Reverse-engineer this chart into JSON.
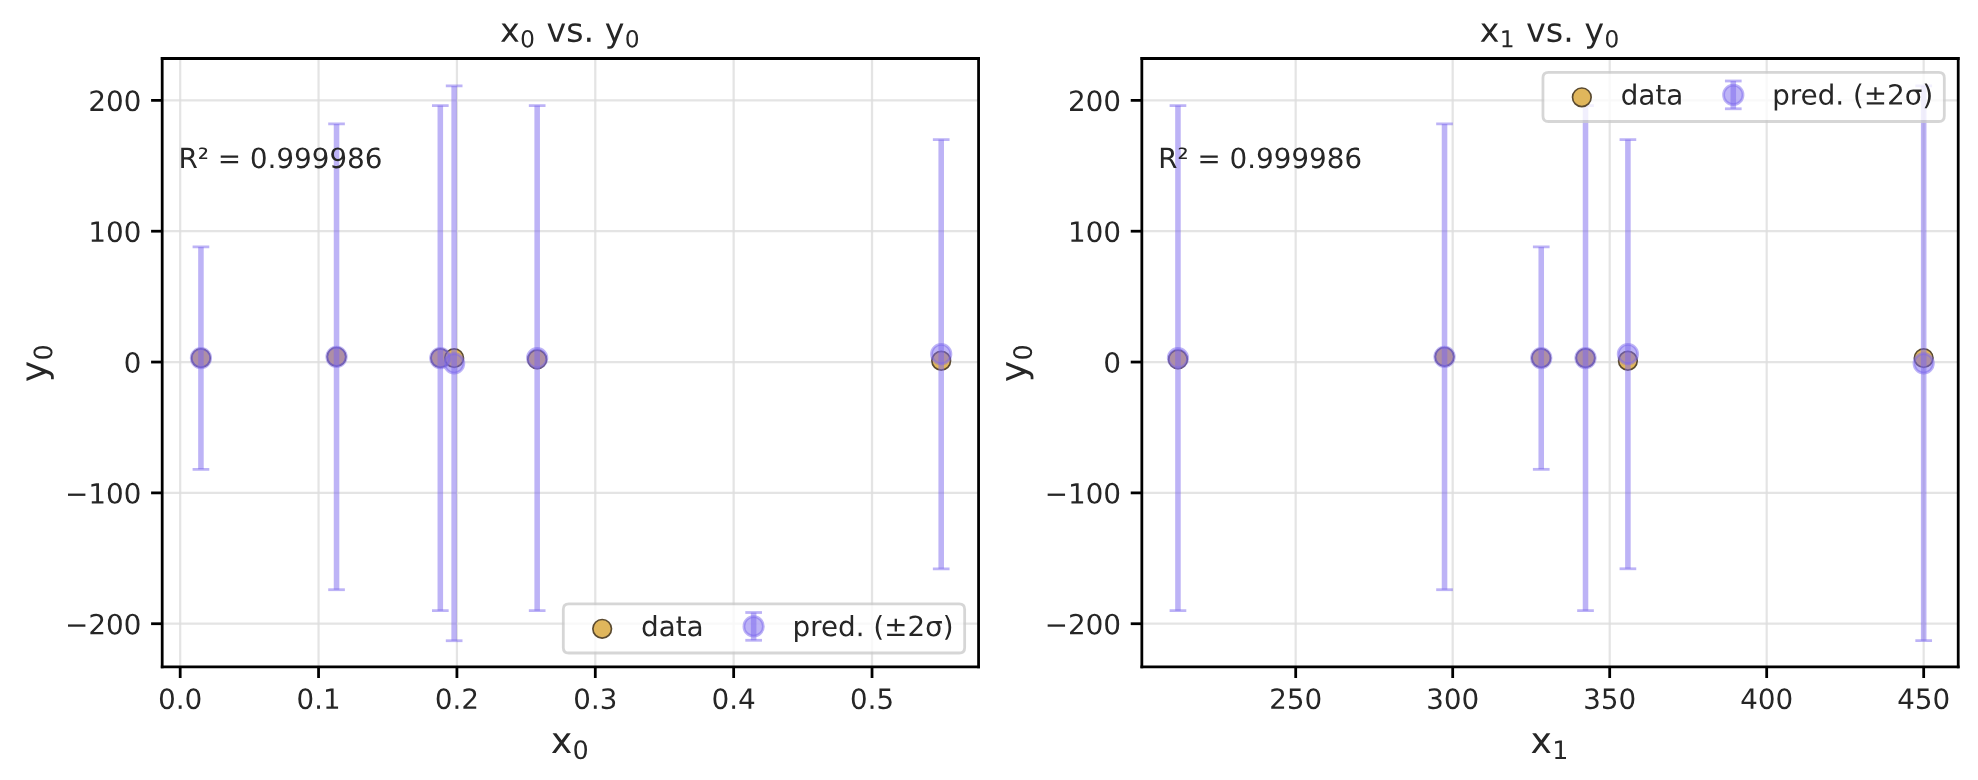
{
  "chart_data": [
    {
      "type": "scatter",
      "title": "x$_{0}$ vs. y$_{0}$",
      "xlabel": "x$_{0}$",
      "ylabel": "y$_{0}$",
      "xlim": [
        -0.013,
        0.577
      ],
      "xticks": [
        {
          "value": 0,
          "label": "0.0"
        },
        {
          "value": 0.1,
          "label": "0.1"
        },
        {
          "value": 0.2,
          "label": "0.2"
        },
        {
          "value": 0.3,
          "label": "0.3"
        },
        {
          "value": 0.4,
          "label": "0.4"
        },
        {
          "value": 0.5,
          "label": "0.5"
        }
      ],
      "ylim": [
        -233,
        232
      ],
      "yticks": [
        -200,
        -100,
        0,
        100,
        200
      ],
      "grid": true,
      "legend": "bottom right",
      "marker": "circle",
      "annotations": [
        "R² = 0.999986"
      ],
      "series": [
        {
          "name": "data",
          "color": "#e0b65c",
          "x": [
            0.015,
            0.113,
            0.188,
            0.198,
            0.258,
            0.55
          ],
          "values": [
            3,
            4,
            3,
            3,
            2,
            1
          ]
        },
        {
          "name": "pred. (±2σ)",
          "color": "#7b68ee",
          "x": [
            0.015,
            0.113,
            0.188,
            0.198,
            0.258,
            0.55
          ],
          "values": [
            3,
            4,
            3,
            -1,
            3,
            6
          ],
          "errors": [
            85,
            178,
            193,
            212,
            193,
            164
          ]
        }
      ]
    },
    {
      "type": "scatter",
      "title": "x$_{1}$ vs. y$_{0}$",
      "xlabel": "x$_{1}$",
      "ylabel": "y$_{0}$",
      "xlim": [
        201,
        461
      ],
      "xticks": [
        250,
        300,
        350,
        400,
        450
      ],
      "ylim": [
        -233,
        232
      ],
      "yticks": [
        -200,
        -100,
        0,
        100,
        200
      ],
      "grid": true,
      "legend": "top right",
      "marker": "circle",
      "annotations": [
        "R² = 0.999986"
      ],
      "series": [
        {
          "name": "data",
          "color": "#e0b65c",
          "x": [
            212.5,
            297.4,
            328.2,
            342.3,
            355.8,
            450
          ],
          "values": [
            2,
            4,
            3,
            3,
            1,
            3
          ]
        },
        {
          "name": "pred. (±2σ)",
          "color": "#7b68ee",
          "x": [
            212.5,
            297.4,
            328.2,
            342.3,
            355.8,
            450
          ],
          "values": [
            3,
            4,
            3,
            3,
            6,
            -1
          ],
          "errors": [
            193,
            178,
            85,
            193,
            164,
            212
          ]
        }
      ]
    }
  ]
}
